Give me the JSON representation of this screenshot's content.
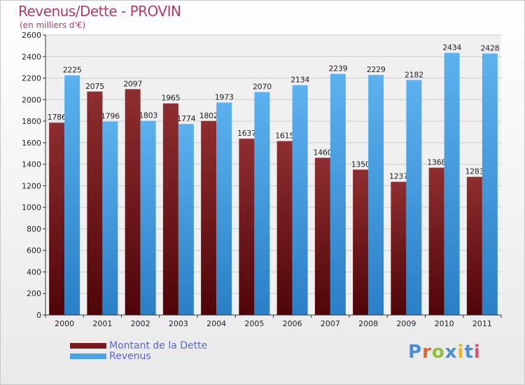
{
  "header": {
    "title": "Revenus/Dette - PROVIN",
    "subtitle": "(en milliers d'€)"
  },
  "legend": {
    "debt_label": "Montant de la Dette",
    "revenue_label": "Revenus"
  },
  "logo": {
    "text": "Proxiti",
    "colors": [
      "#4a8fd6",
      "#e0662a",
      "#8fbf3c",
      "#4a8fd6",
      "#f2b51b",
      "#4a8fd6",
      "#e04a6e"
    ]
  },
  "colors": {
    "debt": "#7a1a1e",
    "revenue": "#4aa3e4",
    "axis": "#333333",
    "grid": "#cccccc"
  },
  "chart_data": {
    "type": "bar",
    "title": "Revenus/Dette - PROVIN",
    "subtitle": "(en milliers d'€)",
    "xlabel": "",
    "ylabel": "",
    "ylim": [
      0,
      2600
    ],
    "ytick_step": 200,
    "grid": true,
    "legend_position": "bottom-left",
    "categories": [
      "2000",
      "2001",
      "2002",
      "2003",
      "2004",
      "2005",
      "2006",
      "2007",
      "2008",
      "2009",
      "2010",
      "2011"
    ],
    "series": [
      {
        "name": "Montant de la Dette",
        "values": [
          1786,
          2075,
          2097,
          1965,
          1802,
          1637,
          1615,
          1460,
          1350,
          1237,
          1368,
          1283
        ]
      },
      {
        "name": "Revenus",
        "values": [
          2225,
          1796,
          1803,
          1774,
          1973,
          2070,
          2134,
          2239,
          2229,
          2182,
          2434,
          2428
        ]
      }
    ]
  }
}
